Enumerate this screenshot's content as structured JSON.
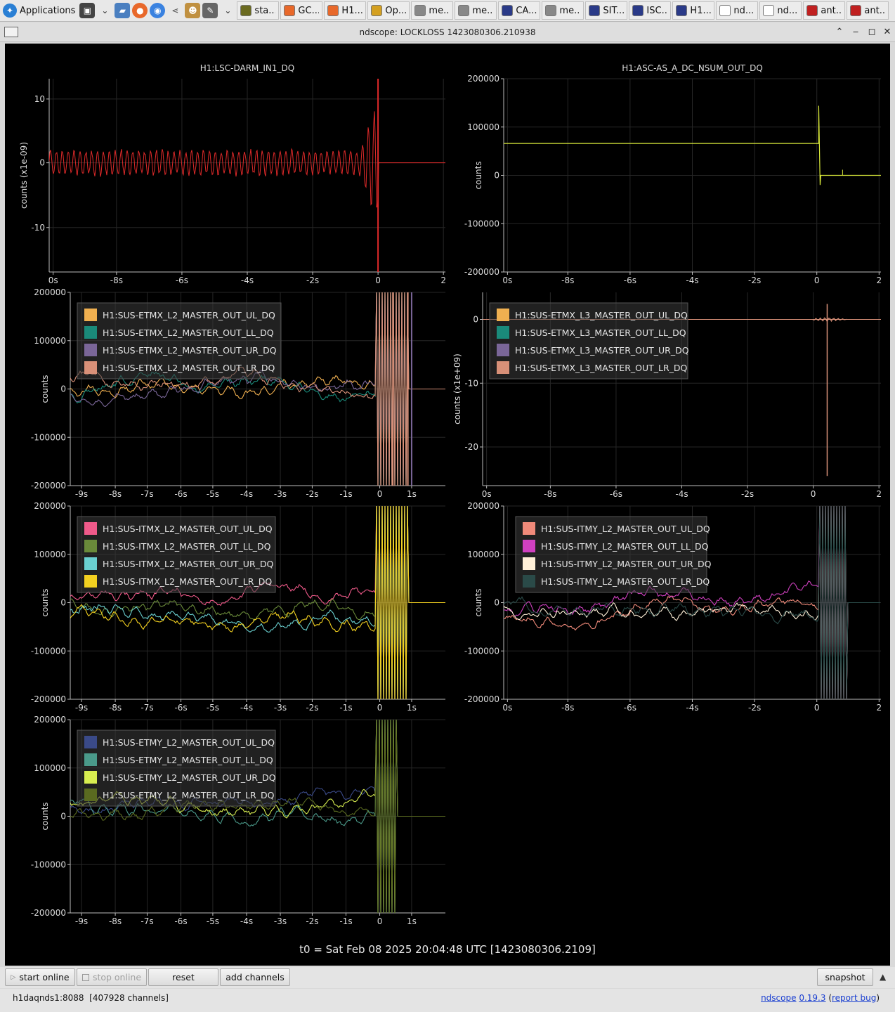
{
  "taskbar": {
    "apps_label": "Applications",
    "tasks": [
      "sta...",
      "GC...",
      "H1...",
      "Op...",
      "me...",
      "me...",
      "CA...",
      "me...",
      "SIT...",
      "ISC...",
      "H1...",
      "nd...",
      "nd...",
      "ant...",
      "ant..."
    ]
  },
  "window": {
    "title": "ndscope: LOCKLOSS 1423080306.210938"
  },
  "colors": {
    "darm": "#e02a2a",
    "asc": "#d8e83a",
    "grid": "#262626",
    "axis": "#bdbdbd"
  },
  "plots": [
    {
      "id": "p1",
      "title": "H1:LSC-DARM_IN1_DQ",
      "ylabel": "counts (x1e-09)",
      "yticks": [
        "10",
        "0",
        "-10"
      ],
      "xticks": [
        "0s",
        "-8s",
        "-6s",
        "-4s",
        "-2s",
        "0",
        "2"
      ],
      "legend": []
    },
    {
      "id": "p2",
      "title": "H1:ASC-AS_A_DC_NSUM_OUT_DQ",
      "ylabel": "counts",
      "yticks": [
        "200000",
        "100000",
        "0",
        "-100000",
        "-200000"
      ],
      "xticks": [
        "0s",
        "-8s",
        "-6s",
        "-4s",
        "-2s",
        "0",
        "2"
      ],
      "legend": []
    },
    {
      "id": "p3",
      "title": "",
      "ylabel": "counts",
      "yticks": [
        "200000",
        "100000",
        "0",
        "-100000",
        "-200000"
      ],
      "xticks": [
        "-9s",
        "-8s",
        "-7s",
        "-6s",
        "-5s",
        "-4s",
        "-3s",
        "-2s",
        "-1s",
        "0",
        "1s"
      ],
      "legend": [
        {
          "name": "H1:SUS-ETMX_L2_MASTER_OUT_UL_DQ",
          "color": "#f0b050"
        },
        {
          "name": "H1:SUS-ETMX_L2_MASTER_OUT_LL_DQ",
          "color": "#1a8a7a"
        },
        {
          "name": "H1:SUS-ETMX_L2_MASTER_OUT_UR_DQ",
          "color": "#7a6698"
        },
        {
          "name": "H1:SUS-ETMX_L2_MASTER_OUT_LR_DQ",
          "color": "#d89078"
        }
      ]
    },
    {
      "id": "p4",
      "title": "",
      "ylabel": "counts (x1e+09)",
      "yticks": [
        "0",
        "-10",
        "-20"
      ],
      "xticks": [
        "0s",
        "-8s",
        "-6s",
        "-4s",
        "-2s",
        "0",
        "2"
      ],
      "legend": [
        {
          "name": "H1:SUS-ETMX_L3_MASTER_OUT_UL_DQ",
          "color": "#f0b050"
        },
        {
          "name": "H1:SUS-ETMX_L3_MASTER_OUT_LL_DQ",
          "color": "#1a8a7a"
        },
        {
          "name": "H1:SUS-ETMX_L3_MASTER_OUT_UR_DQ",
          "color": "#7a6698"
        },
        {
          "name": "H1:SUS-ETMX_L3_MASTER_OUT_LR_DQ",
          "color": "#d89078"
        }
      ]
    },
    {
      "id": "p5",
      "title": "",
      "ylabel": "counts",
      "yticks": [
        "200000",
        "100000",
        "0",
        "-100000",
        "-200000"
      ],
      "xticks": [
        "-9s",
        "-8s",
        "-7s",
        "-6s",
        "-5s",
        "-4s",
        "-3s",
        "-2s",
        "-1s",
        "0",
        "1s"
      ],
      "legend": [
        {
          "name": "H1:SUS-ITMX_L2_MASTER_OUT_UL_DQ",
          "color": "#f05a8a"
        },
        {
          "name": "H1:SUS-ITMX_L2_MASTER_OUT_LL_DQ",
          "color": "#6a8a3a"
        },
        {
          "name": "H1:SUS-ITMX_L2_MASTER_OUT_UR_DQ",
          "color": "#6ad0d0"
        },
        {
          "name": "H1:SUS-ITMX_L2_MASTER_OUT_LR_DQ",
          "color": "#f2d020"
        }
      ]
    },
    {
      "id": "p6",
      "title": "",
      "ylabel": "counts",
      "yticks": [
        "200000",
        "100000",
        "0",
        "-100000",
        "-200000"
      ],
      "xticks": [
        "0s",
        "-8s",
        "-6s",
        "-4s",
        "-2s",
        "0",
        "2"
      ],
      "legend": [
        {
          "name": "H1:SUS-ITMY_L2_MASTER_OUT_UL_DQ",
          "color": "#f08a7a"
        },
        {
          "name": "H1:SUS-ITMY_L2_MASTER_OUT_LL_DQ",
          "color": "#d040c0"
        },
        {
          "name": "H1:SUS-ITMY_L2_MASTER_OUT_UR_DQ",
          "color": "#fff0d8"
        },
        {
          "name": "H1:SUS-ITMY_L2_MASTER_OUT_LR_DQ",
          "color": "#2a4a48"
        }
      ]
    },
    {
      "id": "p7",
      "title": "",
      "ylabel": "counts",
      "yticks": [
        "200000",
        "100000",
        "0",
        "-100000",
        "-200000"
      ],
      "xticks": [
        "-9s",
        "-8s",
        "-7s",
        "-6s",
        "-5s",
        "-4s",
        "-3s",
        "-2s",
        "-1s",
        "0",
        "1s"
      ],
      "legend": [
        {
          "name": "H1:SUS-ETMY_L2_MASTER_OUT_UL_DQ",
          "color": "#3a4a88"
        },
        {
          "name": "H1:SUS-ETMY_L2_MASTER_OUT_LL_DQ",
          "color": "#4a9a8a"
        },
        {
          "name": "H1:SUS-ETMY_L2_MASTER_OUT_UR_DQ",
          "color": "#d8ee50"
        },
        {
          "name": "H1:SUS-ETMY_L2_MASTER_OUT_LR_DQ",
          "color": "#5a6a20"
        }
      ]
    }
  ],
  "t0_label": "t0 = Sat Feb 08 2025 20:04:48 UTC [1423080306.2109]",
  "toolbar": {
    "start_online": "start online",
    "stop_online": "stop online",
    "reset": "reset",
    "add_channels": "add channels",
    "snapshot": "snapshot"
  },
  "status": {
    "server": "h1daqnds1:8088",
    "channels": "[407928 channels]",
    "app_name": "ndscope",
    "version": "0.19.3",
    "report_bug": "report bug"
  }
}
